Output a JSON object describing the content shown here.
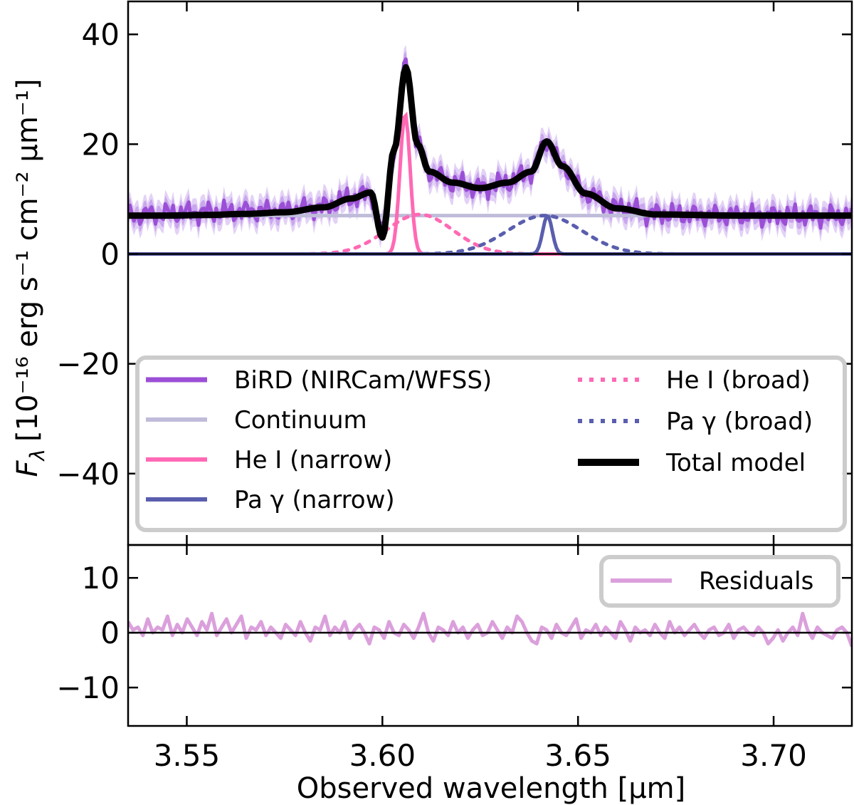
{
  "colors": {
    "data": "#9b4fd6",
    "data_band_inner": "#c9a6ee",
    "data_band_outer": "#e3d2f6",
    "continuum": "#bfbcda",
    "he_narrow": "#ff69b4",
    "he_broad": "#ff69b4",
    "pa_narrow": "#5a5eae",
    "pa_broad": "#5a5eae",
    "total": "#000000",
    "residuals": "#dba0dc",
    "legend_border": "#cccccc"
  },
  "chart_data": [
    {
      "type": "line",
      "panel": "main",
      "ylabel_main": "F",
      "ylabel_sub": "λ",
      "ylabel_unit": "[10⁻¹⁶ erg s⁻¹ cm⁻² μm⁻¹]",
      "xlim": [
        3.535,
        3.72
      ],
      "ylim": [
        -53,
        46
      ],
      "yticks": [
        40,
        20,
        0,
        -20,
        -40
      ],
      "ytick_labels": [
        "40",
        "20",
        "0",
        "−20",
        "−40"
      ],
      "series": [
        {
          "name": "BiRD (NIRCam/WFSS)",
          "style": "data",
          "x": [
            3.535,
            3.545,
            3.555,
            3.565,
            3.575,
            3.585,
            3.592,
            3.597,
            3.6,
            3.603,
            3.606,
            3.609,
            3.612,
            3.618,
            3.625,
            3.632,
            3.638,
            3.642,
            3.646,
            3.652,
            3.66,
            3.67,
            3.69,
            3.72
          ],
          "y": [
            7,
            7.4,
            7.6,
            7.8,
            7.9,
            8.6,
            10.2,
            11.0,
            3.5,
            19,
            34.5,
            20,
            15,
            13,
            12,
            13,
            15,
            20.5,
            16,
            11,
            8.4,
            7.3,
            7,
            7
          ]
        },
        {
          "name": "Continuum",
          "style": "continuum",
          "x": [
            3.535,
            3.72
          ],
          "y": [
            7,
            7
          ]
        },
        {
          "name": "He I (narrow)",
          "style": "he_narrow",
          "center": 3.6058,
          "amplitude": 25.5,
          "sigma": 0.0013
        },
        {
          "name": "Pa γ (narrow)",
          "style": "pa_narrow",
          "center": 3.6422,
          "amplitude": 7.0,
          "sigma": 0.0012
        },
        {
          "name": "He I (broad)",
          "style": "he_broad",
          "center": 3.6095,
          "amplitude": 7.2,
          "sigma": 0.0085
        },
        {
          "name": "Pa γ (broad)",
          "style": "pa_broad",
          "center": 3.6415,
          "amplitude": 7.0,
          "sigma": 0.0095
        },
        {
          "name": "Total model",
          "style": "total",
          "x": [
            3.535,
            3.545,
            3.555,
            3.565,
            3.575,
            3.585,
            3.592,
            3.597,
            3.6,
            3.603,
            3.606,
            3.609,
            3.612,
            3.618,
            3.625,
            3.632,
            3.638,
            3.642,
            3.646,
            3.652,
            3.66,
            3.67,
            3.69,
            3.72
          ],
          "y": [
            7,
            7,
            7.1,
            7.3,
            7.6,
            8.5,
            10.1,
            11.2,
            3,
            19,
            34,
            20,
            15,
            13,
            12,
            13,
            15,
            20.5,
            16,
            11,
            8.3,
            7.2,
            7,
            7
          ]
        }
      ],
      "legend": {
        "left": [
          {
            "label": "BiRD (NIRCam/WFSS)",
            "style": "data"
          },
          {
            "label": "Continuum",
            "style": "continuum"
          },
          {
            "label": "He I (narrow)",
            "style": "he_narrow"
          },
          {
            "label": "Pa γ (narrow)",
            "style": "pa_narrow"
          }
        ],
        "right": [
          {
            "label": "He I (broad)",
            "style": "he_broad"
          },
          {
            "label": "Pa γ (broad)",
            "style": "pa_broad"
          },
          {
            "label": "Total model",
            "style": "total"
          }
        ],
        "placement": "lower-center"
      }
    },
    {
      "type": "line",
      "panel": "residuals",
      "xlabel": "Observed wavelength [μm]",
      "xlim": [
        3.535,
        3.72
      ],
      "ylim": [
        -17,
        16
      ],
      "yticks": [
        10,
        0,
        -10
      ],
      "ytick_labels": [
        "10",
        "0",
        "−10"
      ],
      "xticks": [
        3.55,
        3.6,
        3.65,
        3.7
      ],
      "xtick_labels": [
        "3.55",
        "3.60",
        "3.65",
        "3.70"
      ],
      "series": [
        {
          "name": "Residuals",
          "style": "residuals",
          "y": [
            2,
            0.5,
            1,
            -0.5,
            2.5,
            0,
            1,
            0.5,
            3,
            -0.5,
            1.5,
            0,
            2.5,
            1,
            -0.5,
            2,
            0.5,
            3.5,
            -0.5,
            1,
            2.5,
            0,
            1.5,
            3,
            -1,
            1,
            0.5,
            2,
            -0.5,
            1,
            0,
            -1,
            1.5,
            0.5,
            -0.5,
            2,
            0,
            -1.5,
            1,
            0.5,
            3,
            -0.5,
            1,
            0,
            2,
            -1,
            0.5,
            1.5,
            0,
            -2,
            1,
            0.5,
            -1,
            2,
            0,
            -0.5,
            1.5,
            0.5,
            -1,
            1,
            3.5,
            0,
            -1.5,
            1,
            0.5,
            -0.5,
            2,
            0,
            1,
            -1,
            0.5,
            1.5,
            -0.5,
            0,
            2,
            0.5,
            -1,
            1,
            0,
            3,
            2,
            0,
            -1.5,
            -2,
            1,
            0.5,
            -1,
            1.5,
            0,
            -0.5,
            1,
            2.5,
            -1,
            0.5,
            0,
            1.5,
            -0.5,
            1,
            0,
            -1,
            2,
            0.5,
            -1.5,
            1,
            0,
            0.5,
            -0.5,
            1.5,
            0,
            -1,
            2,
            0,
            1,
            -0.5,
            0.5,
            1.5,
            0,
            -1,
            0.5,
            1,
            -0.5,
            0,
            1.5,
            -1,
            0.5,
            1,
            0,
            -0.5,
            1,
            0,
            -2,
            -1,
            0.5,
            -1.5,
            0,
            1,
            -0.5,
            3.5,
            0.5,
            -1,
            1,
            0,
            -0.5,
            -1,
            0.5,
            1,
            0,
            -2.5
          ]
        }
      ],
      "legend": [
        {
          "label": "Residuals",
          "style": "residuals"
        }
      ],
      "legend_placement": "upper-right"
    }
  ]
}
